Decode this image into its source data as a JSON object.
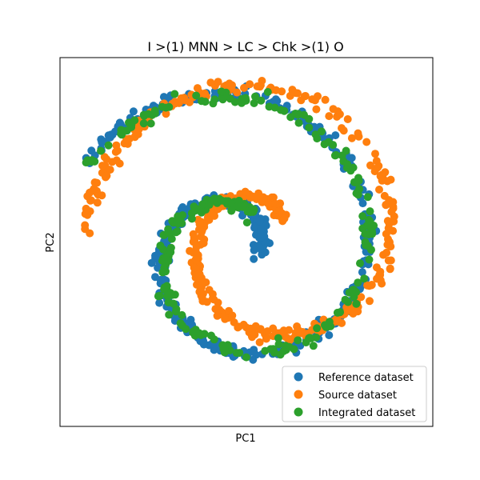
{
  "chart_data": {
    "type": "scatter",
    "title": "I >(1) MNN > LC > Chk >(1) O",
    "xlabel": "PC1",
    "ylabel": "PC2",
    "xlim": [
      -1.0,
      1.0
    ],
    "ylim": [
      -1.0,
      1.0
    ],
    "ticks": "none",
    "grid": false,
    "legend_position": "bottom-right",
    "series": [
      {
        "name": "Reference dataset",
        "color": "#1f77b4",
        "spiral": {
          "center": [
            -0.05,
            -0.05
          ],
          "a": 0.11,
          "b": 0.26,
          "t_start": 0.0,
          "t_end": 8.9,
          "n": 420
        }
      },
      {
        "name": "Source dataset",
        "color": "#ff7f0e",
        "spiral": {
          "center": [
            0.1,
            0.02
          ],
          "a": 0.06,
          "b": 0.27,
          "t_start": 0.8,
          "t_end": 9.4,
          "n": 420
        }
      },
      {
        "name": "Integrated dataset",
        "color": "#2ca02c",
        "spiral": {
          "center": [
            -0.04,
            -0.05
          ],
          "a": 0.11,
          "b": 0.255,
          "t_start": 1.2,
          "t_end": 8.9,
          "n": 260
        }
      }
    ]
  }
}
